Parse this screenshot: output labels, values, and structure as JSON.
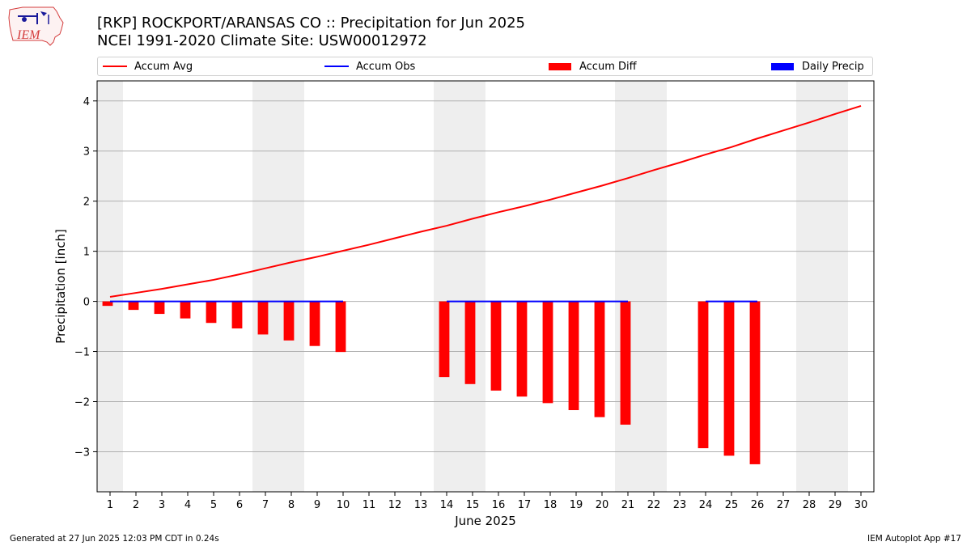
{
  "header": {
    "logo_text": "IEM",
    "title_line1": "[RKP] ROCKPORT/ARANSAS CO :: Precipitation for Jun 2025",
    "title_line2": "NCEI 1991-2020 Climate Site: USW00012972"
  },
  "legend": {
    "placement": "top, above plot, full width",
    "items": [
      {
        "label": "Accum Avg",
        "color": "#ff0000",
        "kind": "line"
      },
      {
        "label": "Accum Obs",
        "color": "#0000ff",
        "kind": "line"
      },
      {
        "label": "Accum Diff",
        "color": "#ff0000",
        "kind": "bar"
      },
      {
        "label": "Daily Precip",
        "color": "#0000ff",
        "kind": "bar"
      }
    ]
  },
  "colors": {
    "weekend_band": "#eeeeee",
    "grid": "#b0b0b0",
    "avg_line": "#ff0000",
    "obs_line": "#0000ff",
    "diff_bar": "#ff0000"
  },
  "footer": {
    "left": "Generated at 27 Jun 2025 12:03 PM CDT in 0.24s",
    "right": "IEM Autoplot App #17"
  },
  "chart_data": {
    "type": "line",
    "xlabel": "June 2025",
    "ylabel": "Precipitation [inch]",
    "xlim": [
      0.5,
      30.5
    ],
    "ylim": [
      -3.8,
      4.4
    ],
    "grid": true,
    "x_ticks": [
      1,
      2,
      3,
      4,
      5,
      6,
      7,
      8,
      9,
      10,
      11,
      12,
      13,
      14,
      15,
      16,
      17,
      18,
      19,
      20,
      21,
      22,
      23,
      24,
      25,
      26,
      27,
      28,
      29,
      30
    ],
    "y_ticks": [
      4,
      3,
      2,
      1,
      0,
      -1,
      -2,
      -3
    ],
    "y_tick_labels": [
      "4",
      "3",
      "2",
      "1",
      "0",
      "−1",
      "−2",
      "−3"
    ],
    "weekend_days": [
      [
        0.5,
        1.5
      ],
      [
        6.5,
        8.5
      ],
      [
        13.5,
        15.5
      ],
      [
        20.5,
        22.5
      ],
      [
        27.5,
        29.5
      ]
    ],
    "series": [
      {
        "name": "Accum Avg",
        "kind": "line",
        "x": [
          1,
          2,
          3,
          4,
          5,
          6,
          7,
          8,
          9,
          10,
          11,
          12,
          13,
          14,
          15,
          16,
          17,
          18,
          19,
          20,
          21,
          22,
          23,
          24,
          25,
          26,
          27,
          28,
          29,
          30
        ],
        "values": [
          0.09,
          0.17,
          0.25,
          0.34,
          0.43,
          0.54,
          0.66,
          0.78,
          0.89,
          1.01,
          1.13,
          1.26,
          1.39,
          1.51,
          1.65,
          1.78,
          1.9,
          2.03,
          2.17,
          2.31,
          2.46,
          2.62,
          2.77,
          2.93,
          3.08,
          3.25,
          3.41,
          3.57,
          3.74,
          3.9
        ]
      },
      {
        "name": "Accum Obs",
        "kind": "line",
        "segments": [
          {
            "x": [
              1,
              2,
              3,
              4,
              5,
              6,
              7,
              8,
              9,
              10
            ],
            "values": [
              0,
              0,
              0,
              0,
              0,
              0,
              0,
              0,
              0,
              0
            ]
          },
          {
            "x": [
              14,
              15,
              16,
              17,
              18,
              19,
              20,
              21
            ],
            "values": [
              0,
              0,
              0,
              0,
              0,
              0,
              0,
              0
            ]
          },
          {
            "x": [
              24,
              25,
              26
            ],
            "values": [
              0,
              0,
              0
            ]
          }
        ]
      },
      {
        "name": "Accum Diff",
        "kind": "bar",
        "x": [
          1,
          2,
          3,
          4,
          5,
          6,
          7,
          8,
          9,
          10,
          14,
          15,
          16,
          17,
          18,
          19,
          20,
          21,
          24,
          25,
          26
        ],
        "values": [
          -0.09,
          -0.17,
          -0.25,
          -0.34,
          -0.43,
          -0.54,
          -0.66,
          -0.78,
          -0.89,
          -1.01,
          -1.51,
          -1.65,
          -1.78,
          -1.9,
          -2.03,
          -2.17,
          -2.31,
          -2.46,
          -2.93,
          -3.08,
          -3.25
        ]
      },
      {
        "name": "Daily Precip",
        "kind": "bar",
        "x": [],
        "values": []
      }
    ]
  }
}
